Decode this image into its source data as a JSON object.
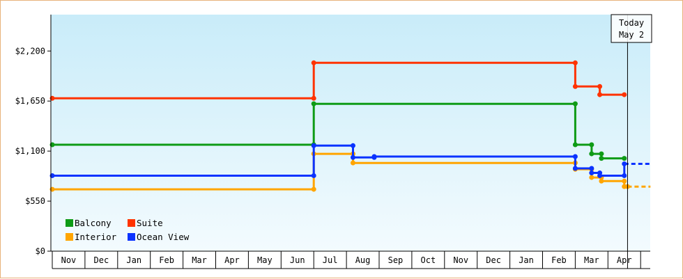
{
  "chart_data": {
    "type": "line",
    "step": true,
    "x_ticks": [
      "Nov",
      "Dec",
      "Jan",
      "Feb",
      "Mar",
      "Apr",
      "May",
      "Jun",
      "Jul",
      "Aug",
      "Sep",
      "Oct",
      "Nov",
      "Dec",
      "Jan",
      "Feb",
      "Mar",
      "Apr"
    ],
    "y_ticks": [
      {
        "value": 0,
        "label": "$0"
      },
      {
        "value": 550,
        "label": "$550"
      },
      {
        "value": 1100,
        "label": "$1,100"
      },
      {
        "value": 1650,
        "label": "$1,650"
      },
      {
        "value": 2200,
        "label": "$2,200"
      }
    ],
    "ylim": [
      0,
      2600
    ],
    "xlim": [
      0,
      18.3
    ],
    "today_marker": {
      "line1": "Today",
      "line2": "May 2",
      "x": 17.6
    },
    "legend_placement": "bottom-left",
    "series": [
      {
        "name": "Balcony",
        "color": "#0e9b16",
        "points": [
          [
            0,
            1170
          ],
          [
            8,
            1170
          ],
          [
            8,
            1620
          ],
          [
            16,
            1620
          ],
          [
            16,
            1170
          ],
          [
            16.5,
            1170
          ],
          [
            16.5,
            1070
          ],
          [
            16.8,
            1070
          ],
          [
            16.8,
            1020
          ],
          [
            17.5,
            1020
          ]
        ]
      },
      {
        "name": "Suite",
        "color": "#ff3300",
        "points": [
          [
            0,
            1680
          ],
          [
            8,
            1680
          ],
          [
            8,
            2070
          ],
          [
            16,
            2070
          ],
          [
            16,
            1810
          ],
          [
            16.75,
            1810
          ],
          [
            16.75,
            1720
          ],
          [
            17.5,
            1720
          ]
        ]
      },
      {
        "name": "Interior",
        "color": "#ffa500",
        "points": [
          [
            0,
            680
          ],
          [
            8,
            680
          ],
          [
            8,
            1070
          ],
          [
            9.2,
            1070
          ],
          [
            9.2,
            970
          ],
          [
            16,
            970
          ],
          [
            16,
            900
          ],
          [
            16.5,
            900
          ],
          [
            16.5,
            810
          ],
          [
            16.8,
            810
          ],
          [
            16.8,
            770
          ],
          [
            17.5,
            770
          ],
          [
            17.5,
            710
          ],
          [
            17.6,
            710
          ],
          [
            18.3,
            710
          ]
        ],
        "dashed_after_x": 17.6
      },
      {
        "name": "Ocean View",
        "color": "#0b33ff",
        "points": [
          [
            0,
            830
          ],
          [
            8,
            830
          ],
          [
            8,
            1160
          ],
          [
            9.2,
            1160
          ],
          [
            9.2,
            1030
          ],
          [
            9.85,
            1030
          ],
          [
            9.85,
            1040
          ],
          [
            16,
            1040
          ],
          [
            16,
            910
          ],
          [
            16.5,
            910
          ],
          [
            16.5,
            860
          ],
          [
            16.75,
            860
          ],
          [
            16.75,
            830
          ],
          [
            17.5,
            830
          ],
          [
            17.5,
            960
          ],
          [
            18.3,
            960
          ]
        ],
        "dashed_after_x": 17.6
      }
    ]
  }
}
